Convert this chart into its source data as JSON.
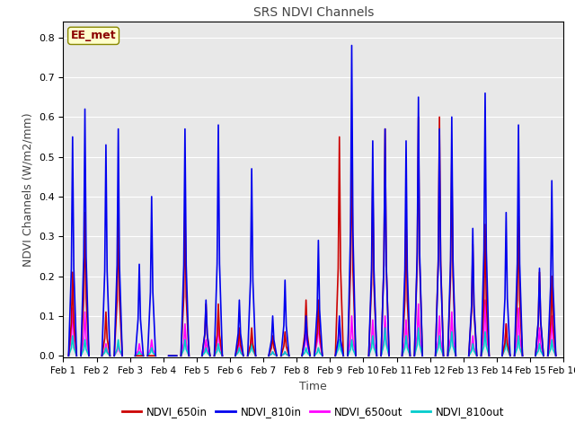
{
  "title": "SRS NDVI Channels",
  "xlabel": "Time",
  "ylabel": "NDVI Channels (W/m2/mm)",
  "ylim": [
    -0.005,
    0.84
  ],
  "xlim": [
    0.0,
    15.0
  ],
  "annotation_text": "EE_met",
  "annotation_color": "#8B0000",
  "annotation_bg": "#FFFFCC",
  "bg_color": "#E8E8E8",
  "grid_color": "white",
  "x_ticks": [
    0,
    1,
    2,
    3,
    4,
    5,
    6,
    7,
    8,
    9,
    10,
    11,
    12,
    13,
    14,
    15
  ],
  "x_tick_labels": [
    "Feb 1",
    "Feb 2",
    "Feb 3",
    "Feb 4",
    "Feb 5",
    "Feb 6",
    "Feb 7",
    "Feb 8",
    "Feb 9",
    "Feb 10",
    "Feb 11",
    "Feb 12",
    "Feb 13",
    "Feb 14",
    "Feb 15",
    "Feb 16"
  ],
  "y_ticks": [
    0.0,
    0.1,
    0.2,
    0.3,
    0.4,
    0.5,
    0.6,
    0.7,
    0.8
  ],
  "series": {
    "NDVI_650in": {
      "color": "#CC0000",
      "linewidth": 1.2
    },
    "NDVI_810in": {
      "color": "#0000EE",
      "linewidth": 1.2
    },
    "NDVI_650out": {
      "color": "#FF00FF",
      "linewidth": 1.2
    },
    "NDVI_810out": {
      "color": "#00CCCC",
      "linewidth": 1.2
    }
  }
}
